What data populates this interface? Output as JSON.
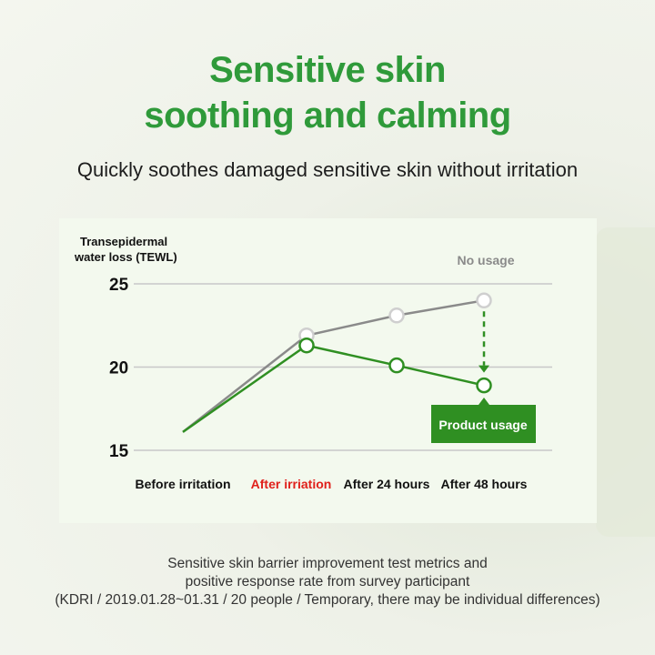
{
  "header": {
    "title_line1": "Sensitive skin",
    "title_line2": "soothing and calming",
    "subtitle": "Quickly soothes damaged sensitive skin without irritation"
  },
  "chart_data": {
    "type": "line",
    "ylabel_line1": "Transepidermal",
    "ylabel_line2": "water loss (TEWL)",
    "categories": [
      "Before irritation",
      "After irriation",
      "After 24 hours",
      "After 48 hours"
    ],
    "category_colors": [
      "#111111",
      "#e0201b",
      "#111111",
      "#111111"
    ],
    "yticks": [
      15,
      20,
      25
    ],
    "ylim": [
      15,
      25
    ],
    "grid": true,
    "series": [
      {
        "name": "No usage",
        "color": "#8a8a8a",
        "values": [
          16.1,
          21.9,
          23.1,
          24.0
        ]
      },
      {
        "name": "Product usage",
        "color": "#2f8f22",
        "values": [
          16.1,
          21.3,
          20.1,
          18.9
        ]
      }
    ]
  },
  "footer": {
    "line1": "Sensitive skin barrier improvement test metrics and",
    "line2": "positive response rate from survey participant",
    "line3": "(KDRI / 2019.01.28~01.31 / 20 people / Temporary, there may be individual differences)"
  }
}
